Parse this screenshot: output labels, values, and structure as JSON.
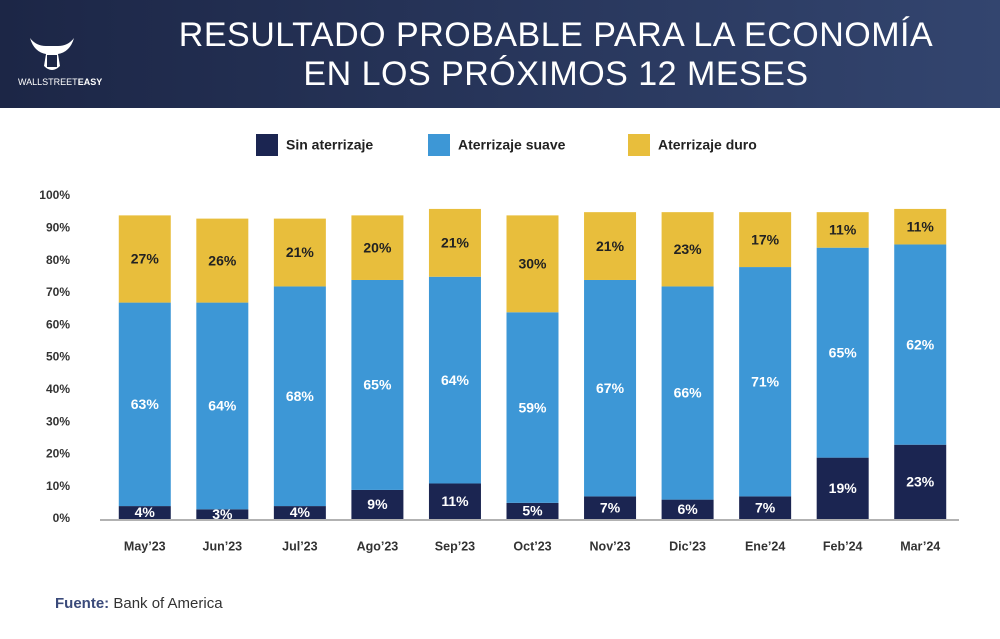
{
  "brand": [
    "WALLSTREET",
    "EASY"
  ],
  "chart_data": {
    "type": "stacked_bar",
    "title": [
      "RESULTADO PROBABLE PARA LA ECONOMÍA",
      "EN LOS PRÓXIMOS 12 MESES"
    ],
    "categories": [
      "May’23",
      "Jun’23",
      "Jul’23",
      "Ago’23",
      "Sep’23",
      "Oct’23",
      "Nov’23",
      "Dic’23",
      "Ene’24",
      "Feb’24",
      "Mar’24"
    ],
    "series": [
      {
        "name": "Sin aterrizaje",
        "color": "#1b2551",
        "values": [
          4,
          3,
          4,
          9,
          11,
          5,
          7,
          6,
          7,
          19,
          23
        ],
        "value_labels": [
          "4%",
          "3%",
          "4%",
          "9%",
          "11%",
          "5%",
          "7%",
          "6%",
          "7%",
          "19%",
          "23%"
        ]
      },
      {
        "name": "Aterrizaje suave",
        "color": "#3d97d6",
        "values": [
          63,
          64,
          68,
          65,
          64,
          59,
          67,
          66,
          71,
          65,
          62
        ],
        "value_labels": [
          "63%",
          "64%",
          "68%",
          "65%",
          "64%",
          "59%",
          "67%",
          "66%",
          "71%",
          "65%",
          "62%"
        ]
      },
      {
        "name": "Aterrizaje duro",
        "color": "#e8be3c",
        "values": [
          27,
          26,
          21,
          20,
          21,
          30,
          21,
          23,
          17,
          11,
          11
        ],
        "value_labels": [
          "27%",
          "26%",
          "21%",
          "20%",
          "21%",
          "30%",
          "21%",
          "23%",
          "17%",
          "11%",
          "11%"
        ]
      }
    ],
    "ylim": [
      0,
      100
    ],
    "yticks": [
      {
        "value": 0,
        "label": "0%"
      },
      {
        "value": 10,
        "label": "10%"
      },
      {
        "value": 20,
        "label": "20%"
      },
      {
        "value": 30,
        "label": "30%"
      },
      {
        "value": 40,
        "label": "40%"
      },
      {
        "value": 50,
        "label": "50%"
      },
      {
        "value": 60,
        "label": "60%"
      },
      {
        "value": 70,
        "label": "70%"
      },
      {
        "value": 80,
        "label": "80%"
      },
      {
        "value": 90,
        "label": "90%"
      },
      {
        "value": 100,
        "label": "100%"
      }
    ],
    "source_label": "Fuente:",
    "source": "Bank of America"
  }
}
